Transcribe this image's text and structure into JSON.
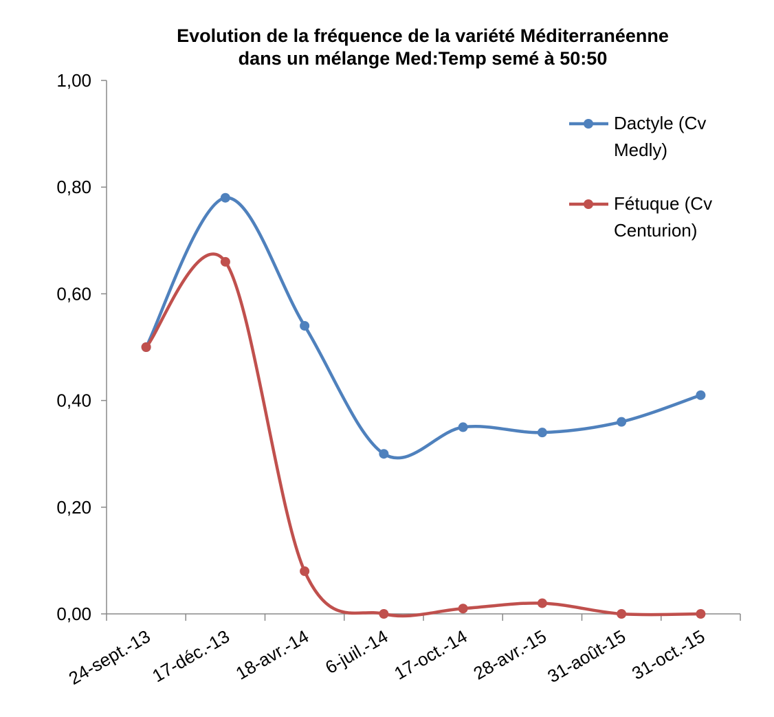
{
  "chart_data": {
    "type": "line",
    "title": "Evolution de la fréquence de la variété Méditerranéenne dans un mélange Med:Temp semé à 50:50",
    "categories": [
      "24-sept.-13",
      "17-déc.-13",
      "18-avr.-14",
      "6-juil.-14",
      "17-oct.-14",
      "28-avr.-15",
      "31-août-15",
      "31-oct.-15"
    ],
    "series": [
      {
        "name": "Dactyle (Cv Medly)",
        "color": "#4f81bd",
        "values": [
          0.5,
          0.78,
          0.54,
          0.3,
          0.35,
          0.34,
          0.36,
          0.41
        ]
      },
      {
        "name": "Fétuque (Cv Centurion)",
        "color": "#c0504d",
        "values": [
          0.5,
          0.66,
          0.08,
          0,
          0.01,
          0.02,
          0,
          0
        ]
      }
    ],
    "ylim": [
      0,
      1
    ],
    "yticks": [
      {
        "value": 0,
        "label": "0,00"
      },
      {
        "value": 0.2,
        "label": "0,20"
      },
      {
        "value": 0.4,
        "label": "0,40"
      },
      {
        "value": 0.6,
        "label": "0,60"
      },
      {
        "value": 0.8,
        "label": "0,80"
      },
      {
        "value": 1,
        "label": "1,00"
      }
    ],
    "smooth": true,
    "legend": "top-right",
    "grid": false
  }
}
